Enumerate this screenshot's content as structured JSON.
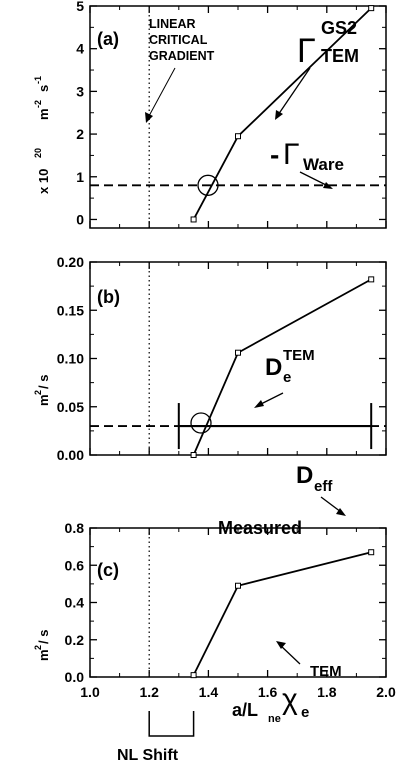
{
  "chart_data": [
    {
      "type": "line",
      "panel_label": "(a)",
      "x": [
        1.35,
        1.5,
        1.95
      ],
      "values": [
        0.0,
        1.95,
        4.95
      ],
      "xlim": [
        1.0,
        2.0
      ],
      "ylim": [
        -0.2,
        5.0
      ],
      "yticks": [
        "0",
        "1",
        "2",
        "3",
        "4",
        "5"
      ],
      "ytick_values": [
        0,
        1,
        2,
        3,
        4,
        5
      ],
      "ylabel_main": "x 10",
      "ylabel_exp": "20",
      "ylabel_unit1": "m",
      "ylabel_unit1_exp": "-2",
      "ylabel_unit2": "s",
      "ylabel_unit2_exp": "-1",
      "reference_line": {
        "y": 0.8,
        "style": "dashed"
      },
      "critical_gradient_x": 1.2,
      "critical_label_lines": [
        "LINEAR",
        "CRITICAL",
        "GRADIENT"
      ],
      "series_symbol": "Γ",
      "series_superscript": "GS2",
      "series_subscript": "TEM",
      "ref_prefix": "-",
      "ref_symbol": "Γ",
      "ref_subscript": "Ware"
    },
    {
      "type": "line",
      "panel_label": "(b)",
      "x": [
        1.35,
        1.5,
        1.95
      ],
      "values": [
        0.0,
        0.106,
        0.182
      ],
      "xlim": [
        1.0,
        2.0
      ],
      "ylim": [
        0.0,
        0.2
      ],
      "yticks": [
        "0.00",
        "0.05",
        "0.10",
        "0.15",
        "0.20"
      ],
      "ytick_values": [
        0,
        0.05,
        0.1,
        0.15,
        0.2
      ],
      "ylabel_unit": "m",
      "ylabel_exp": "2",
      "ylabel_rest": " / s",
      "reference_line": {
        "y": 0.03,
        "style": "dashed"
      },
      "measured_range": [
        1.3,
        1.95
      ],
      "measured_label": "Measured",
      "series_symbol": "D",
      "series_subscript": "e",
      "series_superscript": "TEM",
      "ref_symbol": "D",
      "ref_subscript": "eff"
    },
    {
      "type": "line",
      "panel_label": "(c)",
      "x": [
        1.35,
        1.5,
        1.95
      ],
      "values": [
        0.01,
        0.49,
        0.67
      ],
      "xlim": [
        1.0,
        2.0
      ],
      "ylim": [
        0.0,
        0.8
      ],
      "yticks": [
        "0.0",
        "0.2",
        "0.4",
        "0.6",
        "0.8"
      ],
      "ytick_values": [
        0,
        0.2,
        0.4,
        0.6,
        0.8
      ],
      "ylabel_unit": "m",
      "ylabel_exp": "2",
      "ylabel_rest": " / s",
      "xticks": [
        "1.0",
        "1.2",
        "1.4",
        "1.6",
        "1.8",
        "2.0"
      ],
      "xtick_values": [
        1.0,
        1.2,
        1.4,
        1.6,
        1.8,
        2.0
      ],
      "xlabel_main": "a/L",
      "xlabel_sub": "ne",
      "series_symbol": "χ",
      "series_subscript": "e",
      "series_superscript": "TEM"
    }
  ],
  "nl_shift": {
    "label": "NL Shift",
    "range": [
      1.2,
      1.35
    ]
  }
}
